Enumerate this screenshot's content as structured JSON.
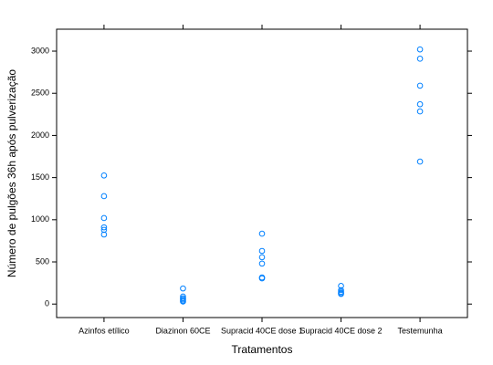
{
  "chart_data": {
    "type": "strip",
    "x_label": "Tratamentos",
    "y_label": "Número de pulgões 36h após pulverização",
    "categories": [
      "Azinfos etílico",
      "Diazinon 60CE",
      "Supracid 40CE dose 1",
      "Supracid 40CE dose 2",
      "Testemunha"
    ],
    "values": [
      [
        1525,
        1280,
        1020,
        910,
        880,
        825
      ],
      [
        185,
        90,
        70,
        55,
        40,
        30
      ],
      [
        835,
        630,
        555,
        480,
        315,
        305
      ],
      [
        215,
        165,
        145,
        130,
        120
      ],
      [
        3020,
        2910,
        2590,
        2370,
        2285,
        1690
      ]
    ],
    "color": "#0080ff",
    "ylim": [
      -160,
      3260
    ],
    "yticks": [
      0,
      500,
      1000,
      1500,
      2000,
      2500,
      3000
    ],
    "grid": false
  }
}
